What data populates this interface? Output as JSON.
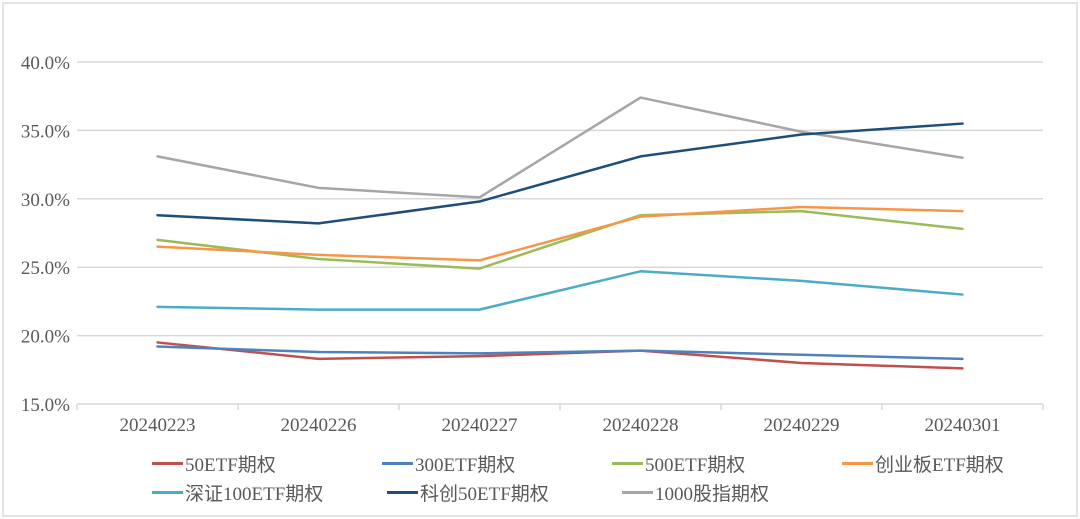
{
  "chart_data": {
    "type": "line",
    "title": "",
    "xlabel": "",
    "ylabel": "",
    "categories": [
      "20240223",
      "20240226",
      "20240227",
      "20240228",
      "20240229",
      "20240301"
    ],
    "series": [
      {
        "name": "50ETF期权",
        "color": "#C0504D",
        "values": [
          19.5,
          18.3,
          18.5,
          18.9,
          18.0,
          17.6
        ]
      },
      {
        "name": "300ETF期权",
        "color": "#4F81BD",
        "values": [
          19.2,
          18.8,
          18.7,
          18.9,
          18.6,
          18.3
        ]
      },
      {
        "name": "500ETF期权",
        "color": "#9BBB59",
        "values": [
          27.0,
          25.6,
          24.9,
          28.8,
          29.1,
          27.8
        ]
      },
      {
        "name": "创业板ETF期权",
        "color": "#F79646",
        "values": [
          26.5,
          25.9,
          25.5,
          28.7,
          29.4,
          29.1
        ]
      },
      {
        "name": "深证100ETF期权",
        "color": "#4BACC6",
        "values": [
          22.1,
          21.9,
          21.9,
          24.7,
          24.0,
          23.0
        ]
      },
      {
        "name": "科创50ETF期权",
        "color": "#1F4E79",
        "values": [
          28.8,
          28.2,
          29.8,
          33.1,
          34.7,
          35.5
        ]
      },
      {
        "name": "1000股指期权",
        "color": "#A6A6A6",
        "values": [
          33.1,
          30.8,
          30.1,
          37.4,
          34.9,
          33.0
        ]
      }
    ],
    "ylim": [
      15,
      40
    ],
    "yticks": {
      "values": [
        15,
        20,
        25,
        30,
        35,
        40
      ],
      "labels": [
        "15.0%",
        "20.0%",
        "25.0%",
        "30.0%",
        "35.0%",
        "40.0%"
      ]
    },
    "grid": true,
    "legend_position": "bottom",
    "legend_rows": [
      [
        0,
        1,
        2,
        3
      ],
      [
        4,
        5,
        6
      ]
    ],
    "colors": {
      "gridline": "#D9D9D9",
      "axis": "#D9D9D9",
      "text": "#595959",
      "background": "#FFFFFF",
      "frame_border": "#E4E4E4"
    }
  }
}
